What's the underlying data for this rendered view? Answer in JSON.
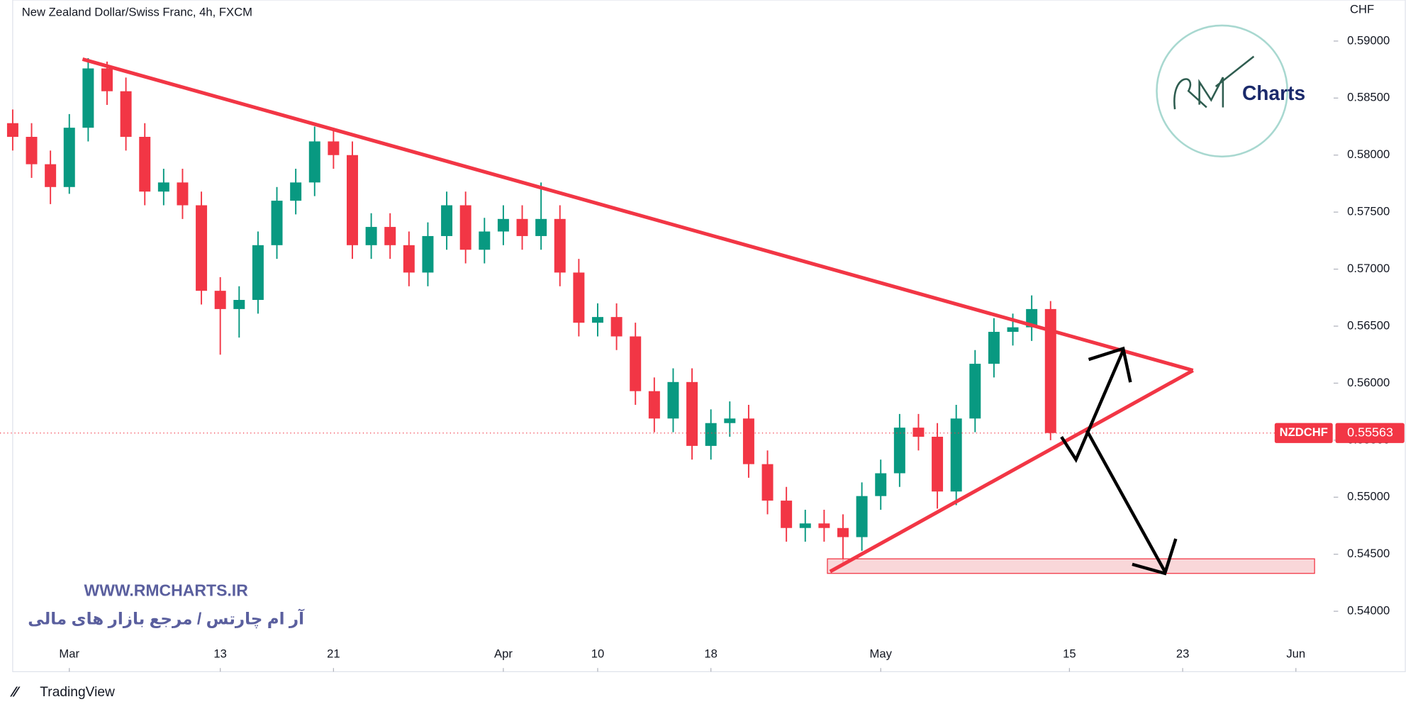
{
  "chart_data": {
    "type": "candlestick",
    "title": "New Zealand Dollar/Swiss Franc, 4h, FXCM",
    "y_axis_label": "CHF",
    "symbol": "NZDCHF",
    "last_price": 0.55563,
    "up_color": "#089981",
    "down_color": "#f23645",
    "grid": false,
    "xlim": [
      -3,
      67
    ],
    "xticks": [
      {
        "value": 0,
        "label": "Mar"
      },
      {
        "value": 8,
        "label": "13"
      },
      {
        "value": 14,
        "label": "21"
      },
      {
        "value": 23,
        "label": "Apr"
      },
      {
        "value": 28,
        "label": "10"
      },
      {
        "value": 34,
        "label": "18"
      },
      {
        "value": 43,
        "label": "May"
      },
      {
        "value": 53,
        "label": "15"
      },
      {
        "value": 59,
        "label": "23"
      },
      {
        "value": 65,
        "label": "Jun"
      }
    ],
    "ylim": [
      0.5347,
      0.5936
    ],
    "yticks": [
      {
        "value": 0.54,
        "label": "0.54000"
      },
      {
        "value": 0.545,
        "label": "0.54500"
      },
      {
        "value": 0.55,
        "label": "0.55000"
      },
      {
        "value": 0.555,
        "label": "0.55500"
      },
      {
        "value": 0.56,
        "label": "0.56000"
      },
      {
        "value": 0.565,
        "label": "0.56500"
      },
      {
        "value": 0.57,
        "label": "0.57000"
      },
      {
        "value": 0.575,
        "label": "0.57500"
      },
      {
        "value": 0.58,
        "label": "0.58000"
      },
      {
        "value": 0.585,
        "label": "0.58500"
      },
      {
        "value": 0.59,
        "label": "0.59000"
      }
    ],
    "x": [
      -3,
      -2,
      -1,
      0,
      1,
      2,
      3,
      4,
      5,
      6,
      7,
      8,
      9,
      10,
      11,
      12,
      13,
      14,
      15,
      16,
      17,
      18,
      19,
      20,
      21,
      22,
      23,
      24,
      25,
      26,
      27,
      28,
      29,
      30,
      31,
      32,
      33,
      34,
      35,
      36,
      37,
      38,
      39,
      40,
      41,
      42,
      43,
      44,
      45,
      46,
      47,
      48,
      49,
      50,
      51,
      52
    ],
    "open": [
      0.5828,
      0.5816,
      0.5792,
      0.5772,
      0.5824,
      0.5876,
      0.5856,
      0.5816,
      0.5768,
      0.5776,
      0.5756,
      0.5681,
      0.5665,
      0.5673,
      0.5721,
      0.576,
      0.5776,
      0.5812,
      0.58,
      0.5721,
      0.5737,
      0.5721,
      0.5697,
      0.5729,
      0.5756,
      0.5717,
      0.5733,
      0.5744,
      0.5729,
      0.5744,
      0.5697,
      0.5653,
      0.5658,
      0.5641,
      0.5593,
      0.5569,
      0.5601,
      0.5545,
      0.5565,
      0.5569,
      0.5529,
      0.5497,
      0.5473,
      0.5477,
      0.5473,
      0.5465,
      0.5501,
      0.5521,
      0.5561,
      0.5553,
      0.5505,
      0.5569,
      0.5617,
      0.5645,
      0.5649,
      0.5665
    ],
    "high": [
      0.584,
      0.5828,
      0.5804,
      0.5836,
      0.5885,
      0.5882,
      0.5868,
      0.5828,
      0.5788,
      0.5788,
      0.5768,
      0.5693,
      0.5685,
      0.5733,
      0.5772,
      0.5788,
      0.5825,
      0.5824,
      0.5812,
      0.5749,
      0.5749,
      0.5733,
      0.5741,
      0.5768,
      0.5768,
      0.5745,
      0.5756,
      0.5756,
      0.5776,
      0.5756,
      0.5709,
      0.567,
      0.567,
      0.5653,
      0.5605,
      0.5613,
      0.5613,
      0.5577,
      0.5584,
      0.5581,
      0.5541,
      0.5509,
      0.5489,
      0.5489,
      0.5485,
      0.5513,
      0.5533,
      0.5573,
      0.5573,
      0.5565,
      0.5581,
      0.5629,
      0.5657,
      0.5661,
      0.5677,
      0.5672
    ],
    "low": [
      0.5804,
      0.578,
      0.5757,
      0.5766,
      0.5812,
      0.5844,
      0.5804,
      0.5756,
      0.5756,
      0.5744,
      0.5669,
      0.5625,
      0.564,
      0.5661,
      0.5709,
      0.5748,
      0.5764,
      0.5788,
      0.5709,
      0.5709,
      0.5709,
      0.5685,
      0.5685,
      0.5717,
      0.5705,
      0.5705,
      0.5721,
      0.5717,
      0.5717,
      0.5685,
      0.5641,
      0.5641,
      0.5629,
      0.5581,
      0.5557,
      0.5557,
      0.5533,
      0.5533,
      0.5553,
      0.5517,
      0.5485,
      0.5461,
      0.5461,
      0.5461,
      0.544,
      0.5453,
      0.5489,
      0.5509,
      0.5541,
      0.549,
      0.5493,
      0.5557,
      0.5605,
      0.5633,
      0.5637,
      0.555
    ],
    "close": [
      0.5816,
      0.5792,
      0.5772,
      0.5824,
      0.5876,
      0.5856,
      0.5816,
      0.5768,
      0.5776,
      0.5756,
      0.5681,
      0.5665,
      0.5673,
      0.5721,
      0.576,
      0.5776,
      0.5812,
      0.58,
      0.5721,
      0.5737,
      0.5721,
      0.5697,
      0.5729,
      0.5756,
      0.5717,
      0.5733,
      0.5744,
      0.5729,
      0.5744,
      0.5697,
      0.5653,
      0.5658,
      0.5641,
      0.5593,
      0.5569,
      0.5601,
      0.5545,
      0.5565,
      0.5569,
      0.5529,
      0.5497,
      0.5473,
      0.5477,
      0.5473,
      0.5465,
      0.5501,
      0.5521,
      0.5561,
      0.5553,
      0.5505,
      0.5569,
      0.5617,
      0.5645,
      0.5649,
      0.5665,
      0.55563
    ]
  },
  "branding": {
    "logo_text": "Charts",
    "watermark_url": "WWW.RMCHARTS.IR",
    "watermark_text": "آر ام چارتس / مرجع بازار های مالی",
    "footer": "TradingView"
  }
}
